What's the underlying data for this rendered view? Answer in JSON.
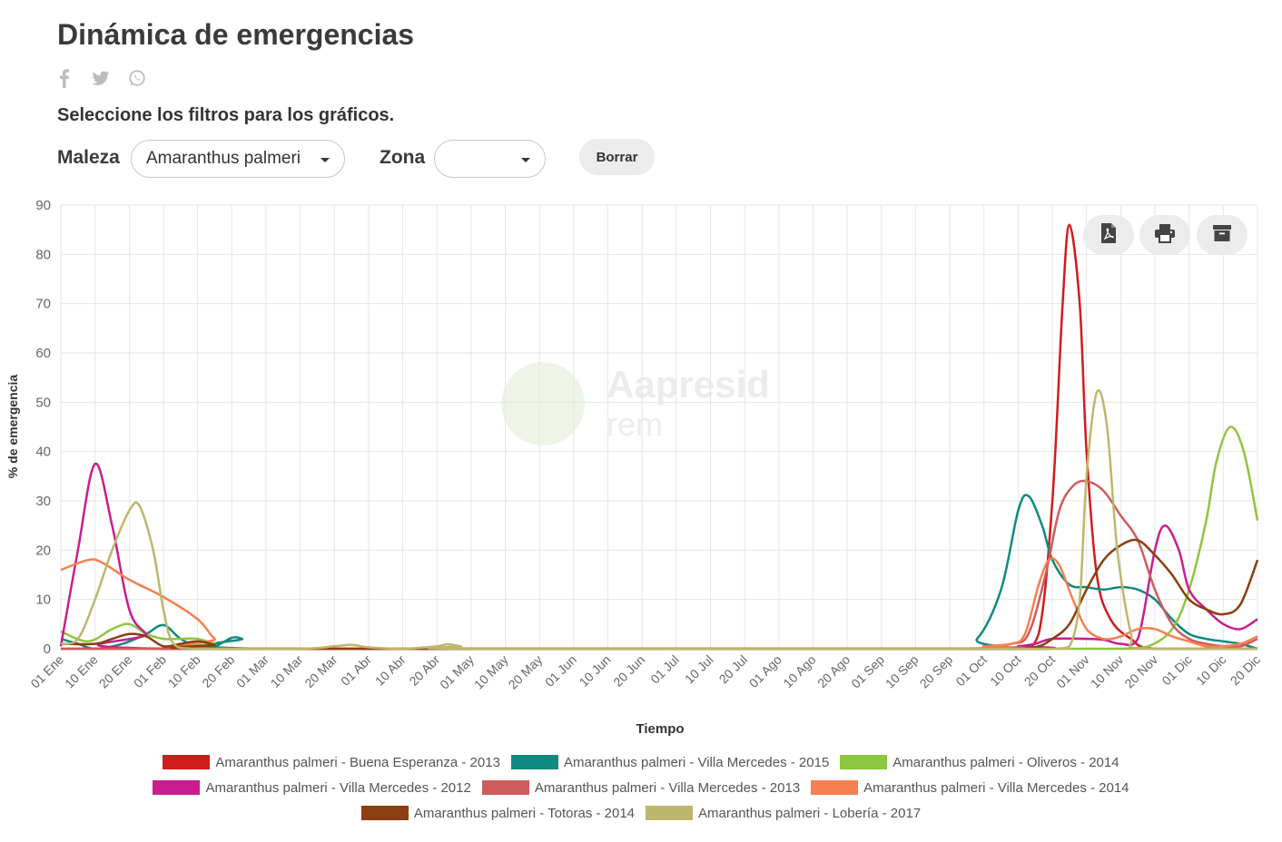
{
  "page": {
    "title": "Dinámica de emergencias",
    "subtitle": "Seleccione los filtros para los gráficos.",
    "share_icons": [
      "facebook-icon",
      "twitter-icon",
      "whatsapp-icon"
    ]
  },
  "filters": {
    "maleza_label": "Maleza",
    "maleza_value": "Amaranthus palmeri",
    "zona_label": "Zona",
    "zona_value": "",
    "clear_label": "Borrar"
  },
  "export_icons": [
    "pdf-icon",
    "print-icon",
    "archive-icon"
  ],
  "watermark": {
    "line1": "Aapresid",
    "line2": "rem"
  },
  "chart_data": {
    "type": "line",
    "xlabel": "Tiempo",
    "ylabel": "% de emergencia",
    "ylim": [
      0,
      90
    ],
    "yticks": [
      0,
      10,
      20,
      30,
      40,
      50,
      60,
      70,
      80,
      90
    ],
    "grid": true,
    "legend_position": "bottom",
    "x_tick_labels": [
      "01 Ene",
      "10 Ene",
      "20 Ene",
      "01 Feb",
      "10 Feb",
      "20 Feb",
      "01 Mar",
      "10 Mar",
      "20 Mar",
      "01 Abr",
      "10 Abr",
      "20 Abr",
      "01 May",
      "10 May",
      "20 May",
      "01 Jun",
      "10 Jun",
      "20 Jun",
      "01 Jul",
      "10 Jul",
      "20 Jul",
      "01 Ago",
      "10 Ago",
      "20 Ago",
      "01 Sep",
      "10 Sep",
      "20 Sep",
      "01 Oct",
      "10 Oct",
      "20 Oct",
      "01 Nov",
      "10 Nov",
      "20 Nov",
      "01 Dic",
      "10 Dic",
      "20 Dic"
    ],
    "series": [
      {
        "name": "Amaranthus palmeri - Buena Esperanza - 2013",
        "color": "#d01c1c",
        "points": [
          [
            0,
            0
          ],
          [
            26,
            0
          ],
          [
            28,
            0
          ],
          [
            28.6,
            3
          ],
          [
            29,
            30
          ],
          [
            29.3,
            70
          ],
          [
            29.5,
            86
          ],
          [
            29.8,
            70
          ],
          [
            30,
            40
          ],
          [
            30.3,
            15
          ],
          [
            30.7,
            6
          ],
          [
            31.3,
            2
          ],
          [
            32,
            0
          ],
          [
            35,
            0
          ]
        ]
      },
      {
        "name": "Amaranthus palmeri - Villa Mercedes - 2015",
        "color": "#0f8a80",
        "points": [
          [
            0,
            2
          ],
          [
            0.5,
            1
          ],
          [
            1,
            0
          ],
          [
            1.8,
            1
          ],
          [
            2.5,
            3
          ],
          [
            3,
            4.8
          ],
          [
            3.5,
            2
          ],
          [
            4,
            0.5
          ],
          [
            4.5,
            0.5
          ],
          [
            5,
            2.2
          ],
          [
            5.3,
            2
          ],
          [
            6,
            0
          ],
          [
            26,
            0
          ],
          [
            26.8,
            2
          ],
          [
            27.5,
            12
          ],
          [
            28,
            28
          ],
          [
            28.3,
            31
          ],
          [
            28.7,
            25
          ],
          [
            29,
            18
          ],
          [
            29.5,
            13
          ],
          [
            30,
            12.5
          ],
          [
            30.5,
            12
          ],
          [
            31,
            12.5
          ],
          [
            31.5,
            12
          ],
          [
            32,
            10
          ],
          [
            32.5,
            6
          ],
          [
            33,
            3
          ],
          [
            33.5,
            2
          ],
          [
            34,
            1.5
          ],
          [
            34.5,
            1
          ],
          [
            35,
            0
          ]
        ]
      },
      {
        "name": "Amaranthus palmeri - Oliveros - 2014",
        "color": "#8dc63f",
        "points": [
          [
            0,
            3.5
          ],
          [
            0.8,
            1.5
          ],
          [
            1.5,
            4
          ],
          [
            2,
            5
          ],
          [
            2.5,
            3
          ],
          [
            3,
            2
          ],
          [
            3.5,
            2
          ],
          [
            4,
            2
          ],
          [
            4.5,
            1
          ],
          [
            5,
            0
          ],
          [
            30,
            0
          ],
          [
            31,
            0
          ],
          [
            31.8,
            0.5
          ],
          [
            32.5,
            4
          ],
          [
            33,
            12
          ],
          [
            33.5,
            26
          ],
          [
            33.8,
            38
          ],
          [
            34.2,
            45
          ],
          [
            34.6,
            40
          ],
          [
            35,
            26
          ]
        ]
      },
      {
        "name": "Amaranthus palmeri - Villa Mercedes - 2012",
        "color": "#c91d8f",
        "points": [
          [
            0,
            0.5
          ],
          [
            0.5,
            20
          ],
          [
            1,
            37.5
          ],
          [
            1.5,
            25
          ],
          [
            2,
            8
          ],
          [
            2.5,
            3
          ],
          [
            3,
            0
          ],
          [
            27,
            0
          ],
          [
            28,
            0.5
          ],
          [
            28.5,
            1
          ],
          [
            29,
            2
          ],
          [
            30,
            2
          ],
          [
            30.5,
            1.8
          ],
          [
            31,
            1
          ],
          [
            31.5,
            2
          ],
          [
            32,
            20
          ],
          [
            32.3,
            25
          ],
          [
            32.7,
            20
          ],
          [
            33,
            12
          ],
          [
            33.5,
            8
          ],
          [
            34,
            5
          ],
          [
            34.5,
            4
          ],
          [
            35,
            6
          ]
        ]
      },
      {
        "name": "Amaranthus palmeri - Villa Mercedes - 2013",
        "color": "#cd5c5c",
        "points": [
          [
            0,
            0
          ],
          [
            26,
            0
          ],
          [
            27,
            0.5
          ],
          [
            27.8,
            1
          ],
          [
            28.3,
            3
          ],
          [
            28.8,
            15
          ],
          [
            29.2,
            28
          ],
          [
            29.6,
            33
          ],
          [
            30,
            34
          ],
          [
            30.5,
            32
          ],
          [
            31,
            27
          ],
          [
            31.5,
            22
          ],
          [
            32,
            12
          ],
          [
            32.5,
            5
          ],
          [
            33,
            2
          ],
          [
            33.5,
            1
          ],
          [
            34,
            0.5
          ],
          [
            34.5,
            0.5
          ],
          [
            35,
            2
          ]
        ]
      },
      {
        "name": "Amaranthus palmeri - Villa Mercedes - 2014",
        "color": "#f77f50",
        "points": [
          [
            0,
            16
          ],
          [
            0.8,
            18
          ],
          [
            1.2,
            17.5
          ],
          [
            2,
            14
          ],
          [
            3,
            10.5
          ],
          [
            4,
            6
          ],
          [
            4.5,
            2
          ],
          [
            5,
            0
          ],
          [
            26,
            0
          ],
          [
            27,
            0.5
          ],
          [
            27.8,
            1
          ],
          [
            28.2,
            3
          ],
          [
            28.6,
            13
          ],
          [
            28.9,
            18
          ],
          [
            29.2,
            17
          ],
          [
            29.6,
            10
          ],
          [
            30,
            4
          ],
          [
            30.5,
            2
          ],
          [
            31,
            2.5
          ],
          [
            31.5,
            4
          ],
          [
            32,
            4
          ],
          [
            32.5,
            2.5
          ],
          [
            33,
            1.5
          ],
          [
            33.5,
            0.5
          ],
          [
            34,
            0.5
          ],
          [
            34.5,
            1
          ],
          [
            35,
            2.5
          ]
        ]
      },
      {
        "name": "Amaranthus palmeri - Totoras - 2014",
        "color": "#8b3e0f",
        "points": [
          [
            0,
            1
          ],
          [
            1,
            1
          ],
          [
            1.5,
            2
          ],
          [
            2,
            3
          ],
          [
            2.5,
            2.5
          ],
          [
            3,
            0.5
          ],
          [
            3.5,
            1
          ],
          [
            4,
            1.5
          ],
          [
            4.5,
            0.8
          ],
          [
            5,
            0
          ],
          [
            27,
            0
          ],
          [
            28,
            0
          ],
          [
            28.6,
            0.5
          ],
          [
            29,
            2
          ],
          [
            29.5,
            5
          ],
          [
            30,
            12
          ],
          [
            30.5,
            18
          ],
          [
            31,
            21
          ],
          [
            31.5,
            22
          ],
          [
            32,
            19
          ],
          [
            32.5,
            15
          ],
          [
            33,
            10
          ],
          [
            33.5,
            8
          ],
          [
            34,
            7
          ],
          [
            34.5,
            9
          ],
          [
            35,
            18
          ]
        ]
      },
      {
        "name": "Amaranthus palmeri - Lobería - 2017",
        "color": "#bdb76b",
        "points": [
          [
            0,
            1
          ],
          [
            0.5,
            2
          ],
          [
            1,
            10
          ],
          [
            1.5,
            20
          ],
          [
            2,
            28
          ],
          [
            2.3,
            29
          ],
          [
            2.7,
            20
          ],
          [
            3,
            8
          ],
          [
            3.3,
            1
          ],
          [
            4,
            0
          ],
          [
            7,
            0
          ],
          [
            8,
            0.5
          ],
          [
            8.5,
            0.8
          ],
          [
            9,
            0.3
          ],
          [
            10,
            0
          ],
          [
            11,
            0.5
          ],
          [
            11.3,
            0.9
          ],
          [
            11.7,
            0.5
          ],
          [
            12,
            0
          ],
          [
            28,
            0
          ],
          [
            29,
            0
          ],
          [
            29.5,
            0.5
          ],
          [
            29.8,
            10
          ],
          [
            30,
            35
          ],
          [
            30.3,
            52
          ],
          [
            30.6,
            45
          ],
          [
            30.9,
            20
          ],
          [
            31.3,
            3
          ],
          [
            31.6,
            0
          ],
          [
            35,
            0
          ]
        ]
      }
    ]
  }
}
